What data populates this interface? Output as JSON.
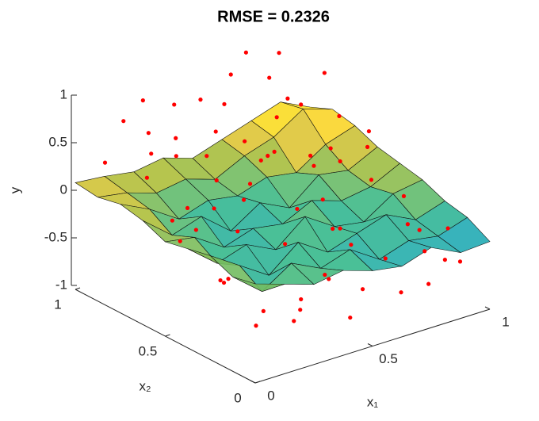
{
  "chart_data": {
    "type": "surface3d",
    "title": "RMSE = 0.2326",
    "xlabel": "x₁",
    "ylabel": "x₂",
    "zlabel": "y",
    "xlim": [
      0,
      1
    ],
    "xticks": [
      0,
      0.5,
      1
    ],
    "ylim": [
      0,
      1
    ],
    "yticks": [
      0,
      0.5,
      1
    ],
    "zlim": [
      -1,
      1
    ],
    "zticks": [
      -1,
      -0.5,
      0,
      0.5,
      1
    ],
    "surface": {
      "x1": [
        0,
        0.125,
        0.25,
        0.375,
        0.5,
        0.625,
        0.75,
        0.875,
        1
      ],
      "x2": [
        0,
        0.125,
        0.25,
        0.375,
        0.5,
        0.625,
        0.75,
        0.875,
        1
      ],
      "z": [
        [
          0.0,
          -0.1,
          -0.2,
          -0.15,
          -0.25,
          -0.3,
          -0.2,
          -0.35,
          -0.33
        ],
        [
          -0.05,
          -0.3,
          -0.1,
          -0.25,
          -0.15,
          -0.35,
          -0.25,
          -0.3,
          -0.2
        ],
        [
          0.05,
          -0.15,
          -0.35,
          -0.1,
          -0.3,
          -0.2,
          -0.1,
          -0.25,
          -0.15
        ],
        [
          0.0,
          -0.25,
          -0.15,
          -0.3,
          -0.05,
          -0.25,
          -0.3,
          -0.1,
          -0.05
        ],
        [
          -0.05,
          -0.1,
          -0.3,
          -0.2,
          -0.25,
          -0.1,
          -0.2,
          -0.15,
          0.0
        ],
        [
          0.05,
          -0.2,
          -0.1,
          -0.35,
          -0.15,
          -0.3,
          -0.05,
          -0.1,
          0.05
        ],
        [
          0.1,
          -0.05,
          -0.25,
          -0.15,
          -0.2,
          -0.1,
          -0.15,
          0.05,
          0.15
        ],
        [
          0.05,
          0.0,
          -0.1,
          -0.05,
          -0.15,
          0.0,
          0.1,
          0.3,
          0.2
        ],
        [
          0.08,
          0.05,
          0.0,
          0.05,
          -0.05,
          0.05,
          0.15,
          0.25,
          0.1
        ]
      ]
    },
    "points": {
      "color": "#ff0000",
      "x1": [
        0.05,
        0.12,
        0.2,
        0.31,
        0.4,
        0.52,
        0.6,
        0.71,
        0.83,
        0.94,
        0.08,
        0.17,
        0.27,
        0.36,
        0.45,
        0.58,
        0.66,
        0.77,
        0.88,
        0.97,
        0.03,
        0.14,
        0.23,
        0.33,
        0.47,
        0.55,
        0.64,
        0.73,
        0.86,
        0.91,
        0.1,
        0.19,
        0.29,
        0.38,
        0.5,
        0.61,
        0.69,
        0.8,
        0.9,
        0.99,
        0.06,
        0.15,
        0.25,
        0.35,
        0.43,
        0.56,
        0.68,
        0.75,
        0.84,
        0.95,
        0.02,
        0.11,
        0.22,
        0.3,
        0.42,
        0.53,
        0.63,
        0.72,
        0.82,
        0.93,
        0.07,
        0.18,
        0.28,
        0.39,
        0.48,
        0.59,
        0.67,
        0.79,
        0.87,
        0.96
      ],
      "x2": [
        0.9,
        0.35,
        0.7,
        0.15,
        0.55,
        0.85,
        0.25,
        0.6,
        0.95,
        0.4,
        0.1,
        0.8,
        0.45,
        0.92,
        0.2,
        0.65,
        0.05,
        0.75,
        0.3,
        0.88,
        0.5,
        0.6,
        0.05,
        0.7,
        0.38,
        0.12,
        0.97,
        0.48,
        0.18,
        0.72,
        0.28,
        0.98,
        0.82,
        0.33,
        0.62,
        0.42,
        0.78,
        0.08,
        0.55,
        0.22,
        0.68,
        0.15,
        0.95,
        0.52,
        0.78,
        0.3,
        0.58,
        0.9,
        0.45,
        0.1,
        0.2,
        0.52,
        0.88,
        0.62,
        0.02,
        0.75,
        0.35,
        0.99,
        0.65,
        0.3,
        0.42,
        0.02,
        0.58,
        0.1,
        0.93,
        0.7,
        0.15,
        0.85,
        0.08,
        0.62
      ],
      "y": [
        0.35,
        -0.4,
        0.5,
        -0.55,
        0.2,
        0.65,
        -0.3,
        0.1,
        0.85,
        -0.2,
        -0.6,
        0.45,
        -0.1,
        0.7,
        -0.45,
        0.3,
        -0.65,
        0.55,
        -0.35,
        0.6,
        0.15,
        -0.25,
        -0.5,
        0.4,
        0.05,
        -0.6,
        0.75,
        0.25,
        -0.5,
        0.35,
        -0.3,
        0.6,
        0.5,
        -0.2,
        0.3,
        0.0,
        0.45,
        -0.7,
        0.2,
        -0.4,
        0.4,
        -0.55,
        0.8,
        0.1,
        0.5,
        -0.15,
        0.25,
        0.7,
        0.0,
        -0.6,
        -0.2,
        0.2,
        0.55,
        -0.05,
        -0.7,
        0.35,
        -0.25,
        0.9,
        0.15,
        -0.45,
        0.1,
        -0.55,
        0.3,
        -0.35,
        0.65,
        0.2,
        -0.4,
        0.5,
        -0.5,
        0.25
      ]
    }
  }
}
